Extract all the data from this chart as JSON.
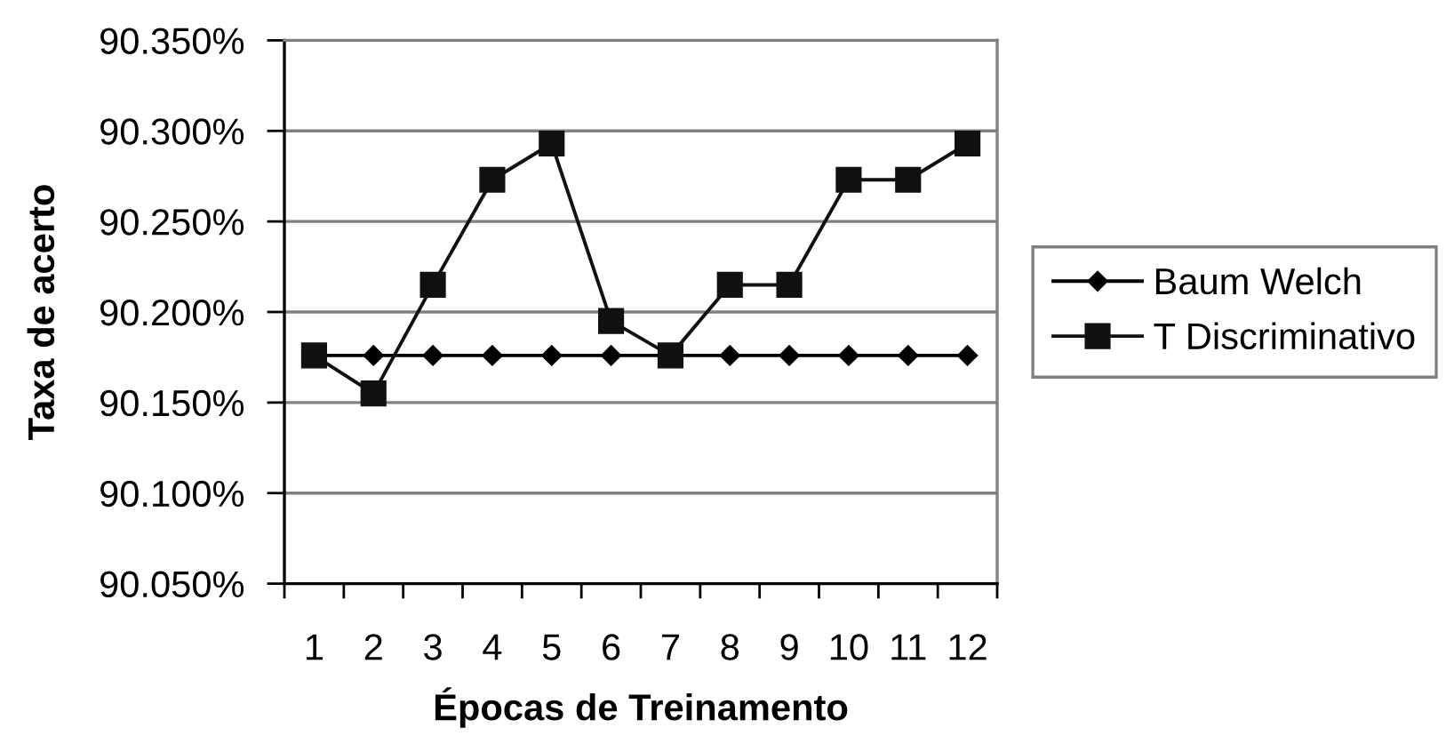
{
  "chart_data": {
    "type": "line",
    "xlabel": "Épocas de Treinamento",
    "ylabel": "Taxa de acerto",
    "categories": [
      "1",
      "2",
      "3",
      "4",
      "5",
      "6",
      "7",
      "8",
      "9",
      "10",
      "11",
      "12"
    ],
    "series": [
      {
        "name": "Baum Welch",
        "color": "#000000",
        "marker": "diamond",
        "values": [
          90.176,
          90.176,
          90.176,
          90.176,
          90.176,
          90.176,
          90.176,
          90.176,
          90.176,
          90.176,
          90.176,
          90.176
        ]
      },
      {
        "name": "T Discriminativo",
        "color": "#111111",
        "marker": "square",
        "values": [
          90.176,
          90.155,
          90.215,
          90.273,
          90.293,
          90.195,
          90.176,
          90.215,
          90.215,
          90.273,
          90.273,
          90.293
        ]
      }
    ],
    "ylim": [
      90.05,
      90.35
    ],
    "yticks": [
      {
        "value": 90.05,
        "label": "90.050%"
      },
      {
        "value": 90.1,
        "label": "90.100%"
      },
      {
        "value": 90.15,
        "label": "90.150%"
      },
      {
        "value": 90.2,
        "label": "90.200%"
      },
      {
        "value": 90.25,
        "label": "90.250%"
      },
      {
        "value": 90.3,
        "label": "90.300%"
      },
      {
        "value": 90.35,
        "label": "90.350%"
      }
    ],
    "grid": "y",
    "legend": "right",
    "line_style": "solid"
  }
}
